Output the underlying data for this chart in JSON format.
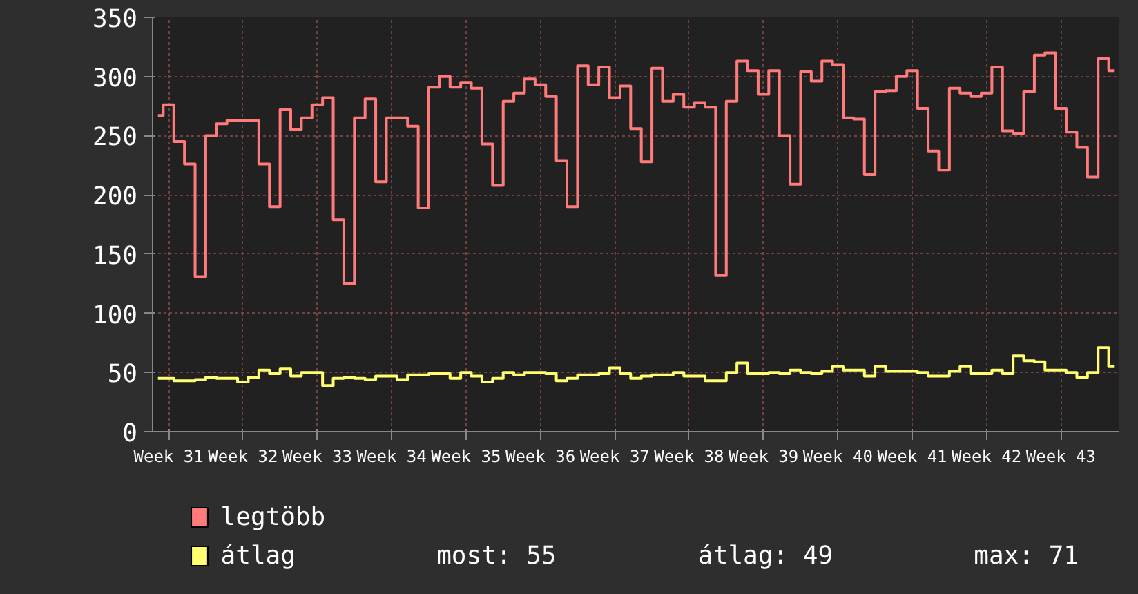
{
  "chart_data": {
    "type": "step",
    "categories": [
      null,
      "Week 31",
      null,
      null,
      null,
      null,
      null,
      null,
      "Week 32",
      null,
      null,
      null,
      null,
      null,
      null,
      "Week 33",
      null,
      null,
      null,
      null,
      null,
      null,
      "Week 34",
      null,
      null,
      null,
      null,
      null,
      null,
      "Week 35",
      null,
      null,
      null,
      null,
      null,
      null,
      "Week 36",
      null,
      null,
      null,
      null,
      null,
      null,
      "Week 37",
      null,
      null,
      null,
      null,
      null,
      null,
      "Week 38",
      null,
      null,
      null,
      null,
      null,
      null,
      "Week 39",
      null,
      null,
      null,
      null,
      null,
      null,
      "Week 40",
      null,
      null,
      null,
      null,
      null,
      null,
      "Week 41",
      null,
      null,
      null,
      null,
      null,
      null,
      "Week 42",
      null,
      null,
      null,
      null,
      null,
      null,
      "Week 43",
      null,
      null,
      null,
      null,
      null
    ],
    "series": [
      {
        "name": "legtöbb",
        "color": "#ff7b7b",
        "values": [
          267,
          276,
          245,
          226,
          131,
          250,
          260,
          263,
          263,
          263,
          226,
          190,
          272,
          255,
          265,
          276,
          282,
          179,
          125,
          265,
          281,
          211,
          265,
          265,
          258,
          189,
          291,
          300,
          291,
          295,
          290,
          243,
          208,
          279,
          286,
          298,
          293,
          283,
          229,
          190,
          309,
          293,
          308,
          282,
          292,
          256,
          228,
          307,
          279,
          285,
          274,
          278,
          274,
          132,
          279,
          313,
          305,
          285,
          305,
          250,
          209,
          304,
          296,
          313,
          310,
          265,
          264,
          217,
          287,
          288,
          300,
          305,
          273,
          237,
          221,
          290,
          286,
          283,
          286,
          308,
          254,
          252,
          287,
          318,
          320,
          273,
          253,
          240,
          215,
          315,
          305
        ]
      },
      {
        "name": "átlag",
        "color": "#ffff70",
        "values": [
          45,
          45,
          43,
          43,
          44,
          46,
          45,
          45,
          42,
          46,
          52,
          49,
          53,
          47,
          50,
          50,
          39,
          45,
          46,
          45,
          44,
          47,
          47,
          44,
          48,
          48,
          49,
          49,
          45,
          50,
          47,
          42,
          45,
          50,
          48,
          50,
          50,
          49,
          43,
          45,
          48,
          48,
          49,
          54,
          49,
          45,
          47,
          48,
          48,
          50,
          47,
          47,
          43,
          43,
          50,
          58,
          49,
          49,
          50,
          49,
          52,
          50,
          49,
          51,
          55,
          52,
          52,
          47,
          55,
          51,
          51,
          51,
          50,
          47,
          47,
          51,
          55,
          49,
          49,
          52,
          49,
          64,
          60,
          59,
          52,
          52,
          50,
          46,
          50,
          71,
          55
        ]
      }
    ],
    "ylim": [
      0,
      350
    ],
    "yticks": [
      0,
      50,
      100,
      150,
      200,
      250,
      300,
      350
    ],
    "grid": true,
    "legend": "bottom left",
    "annotations": [
      "most: 55",
      "átlag: 49",
      "max: 71"
    ]
  }
}
